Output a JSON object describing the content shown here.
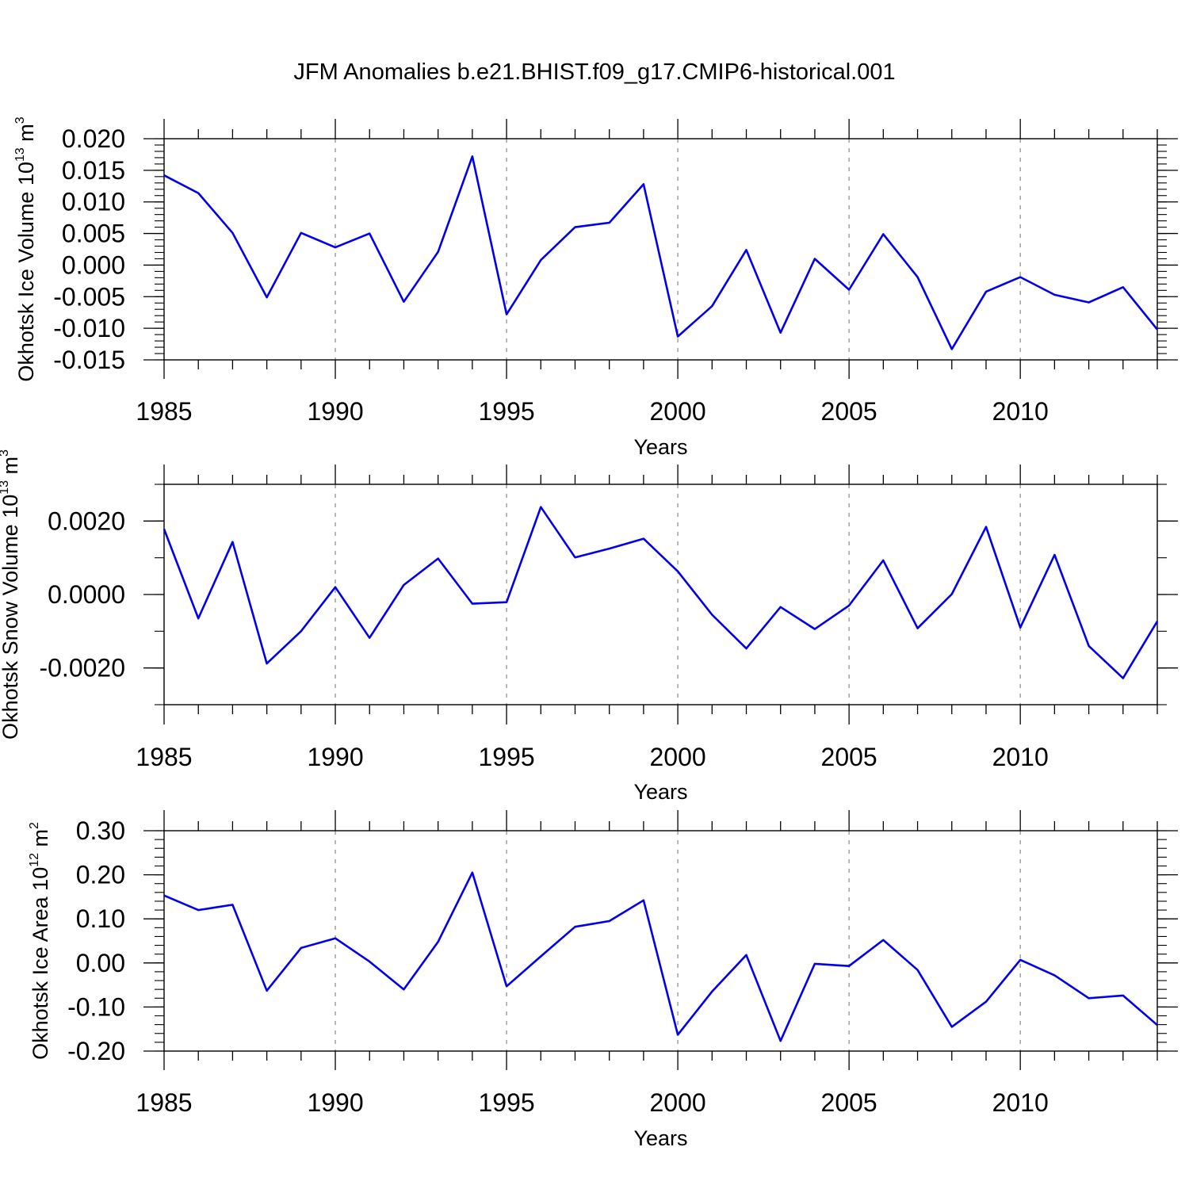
{
  "title": "JFM Anomalies b.e21.BHIST.f09_g17.CMIP6-historical.001",
  "line_color": "#0000ee",
  "grid_color": "#999999",
  "chart_data": [
    {
      "type": "line",
      "xlabel": "Years",
      "ylabel": {
        "text": "Okhotsk Ice Volume 10",
        "sup": "13",
        "unit": " m",
        "unit_sup": "3"
      },
      "xlim": [
        1985,
        2014
      ],
      "ylim": [
        -0.015,
        0.02
      ],
      "x_ticks": [
        1985,
        1990,
        1995,
        2000,
        2005,
        2010
      ],
      "x_tick_labels": [
        "1985",
        "1990",
        "1995",
        "2000",
        "2005",
        "2010"
      ],
      "y_ticks": [
        -0.015,
        -0.01,
        -0.005,
        0.0,
        0.005,
        0.01,
        0.015,
        0.02
      ],
      "y_tick_labels": [
        "-0.015",
        "-0.010",
        "-0.005",
        "0.000",
        "0.005",
        "0.010",
        "0.015",
        "0.020"
      ],
      "y_minor_step": 0.001,
      "x": [
        1985,
        1986,
        1987,
        1988,
        1989,
        1990,
        1991,
        1992,
        1993,
        1994,
        1995,
        1996,
        1997,
        1998,
        1999,
        2000,
        2001,
        2002,
        2003,
        2004,
        2005,
        2006,
        2007,
        2008,
        2009,
        2010,
        2011,
        2012,
        2013,
        2014
      ],
      "values": [
        0.0142,
        0.0114,
        0.0051,
        -0.0051,
        0.0051,
        0.0028,
        0.005,
        -0.0058,
        0.0021,
        0.0172,
        -0.0078,
        0.0008,
        0.006,
        0.0067,
        0.0128,
        -0.0113,
        -0.0065,
        0.0024,
        -0.0107,
        0.001,
        -0.0039,
        0.0049,
        -0.0019,
        -0.0133,
        -0.0042,
        -0.0019,
        -0.0047,
        -0.0059,
        -0.0035,
        -0.0102
      ]
    },
    {
      "type": "line",
      "xlabel": "Years",
      "ylabel": {
        "text": "Okhotsk Snow Volume 10",
        "sup": "13",
        "unit": " m",
        "unit_sup": "3"
      },
      "xlim": [
        1985,
        2014
      ],
      "ylim": [
        -0.003,
        0.003
      ],
      "x_ticks": [
        1985,
        1990,
        1995,
        2000,
        2005,
        2010
      ],
      "x_tick_labels": [
        "1985",
        "1990",
        "1995",
        "2000",
        "2005",
        "2010"
      ],
      "y_ticks": [
        -0.002,
        0.0,
        0.002
      ],
      "y_tick_labels": [
        "-0.0020",
        "0.0000",
        "0.0020"
      ],
      "y_minor_step": 0.001,
      "x": [
        1985,
        1986,
        1987,
        1988,
        1989,
        1990,
        1991,
        1992,
        1993,
        1994,
        1995,
        1996,
        1997,
        1998,
        1999,
        2000,
        2001,
        2002,
        2003,
        2004,
        2005,
        2006,
        2007,
        2008,
        2009,
        2010,
        2011,
        2012,
        2013,
        2014
      ],
      "values": [
        0.00178,
        -0.00065,
        0.00143,
        -0.00188,
        -0.001,
        0.0002,
        -0.00118,
        0.00026,
        0.00098,
        -0.00025,
        -0.00021,
        0.00238,
        0.00101,
        0.00125,
        0.00152,
        0.00063,
        -0.00055,
        -0.00147,
        -0.00034,
        -0.00094,
        -0.0003,
        0.00093,
        -0.00092,
        1e-05,
        0.00184,
        -0.0009,
        0.00108,
        -0.0014,
        -0.00228,
        -0.00073
      ]
    },
    {
      "type": "line",
      "xlabel": "Years",
      "ylabel": {
        "text": "Okhotsk Ice Area 10",
        "sup": "12",
        "unit": " m",
        "unit_sup": "2"
      },
      "xlim": [
        1985,
        2014
      ],
      "ylim": [
        -0.2,
        0.3
      ],
      "x_ticks": [
        1985,
        1990,
        1995,
        2000,
        2005,
        2010
      ],
      "x_tick_labels": [
        "1985",
        "1990",
        "1995",
        "2000",
        "2005",
        "2010"
      ],
      "y_ticks": [
        -0.2,
        -0.1,
        0.0,
        0.1,
        0.2,
        0.3
      ],
      "y_tick_labels": [
        "-0.20",
        "-0.10",
        "0.00",
        "0.10",
        "0.20",
        "0.30"
      ],
      "y_minor_step": 0.02,
      "x": [
        1985,
        1986,
        1987,
        1988,
        1989,
        1990,
        1991,
        1992,
        1993,
        1994,
        1995,
        1996,
        1997,
        1998,
        1999,
        2000,
        2001,
        2002,
        2003,
        2004,
        2005,
        2006,
        2007,
        2008,
        2009,
        2010,
        2011,
        2012,
        2013,
        2014
      ],
      "values": [
        0.153,
        0.12,
        0.132,
        -0.063,
        0.034,
        0.056,
        0.003,
        -0.06,
        0.048,
        0.205,
        -0.053,
        0.015,
        0.082,
        0.095,
        0.142,
        -0.163,
        -0.065,
        0.018,
        -0.177,
        -0.002,
        -0.007,
        0.052,
        -0.016,
        -0.145,
        -0.088,
        0.007,
        -0.028,
        -0.08,
        -0.074,
        -0.141
      ]
    }
  ]
}
